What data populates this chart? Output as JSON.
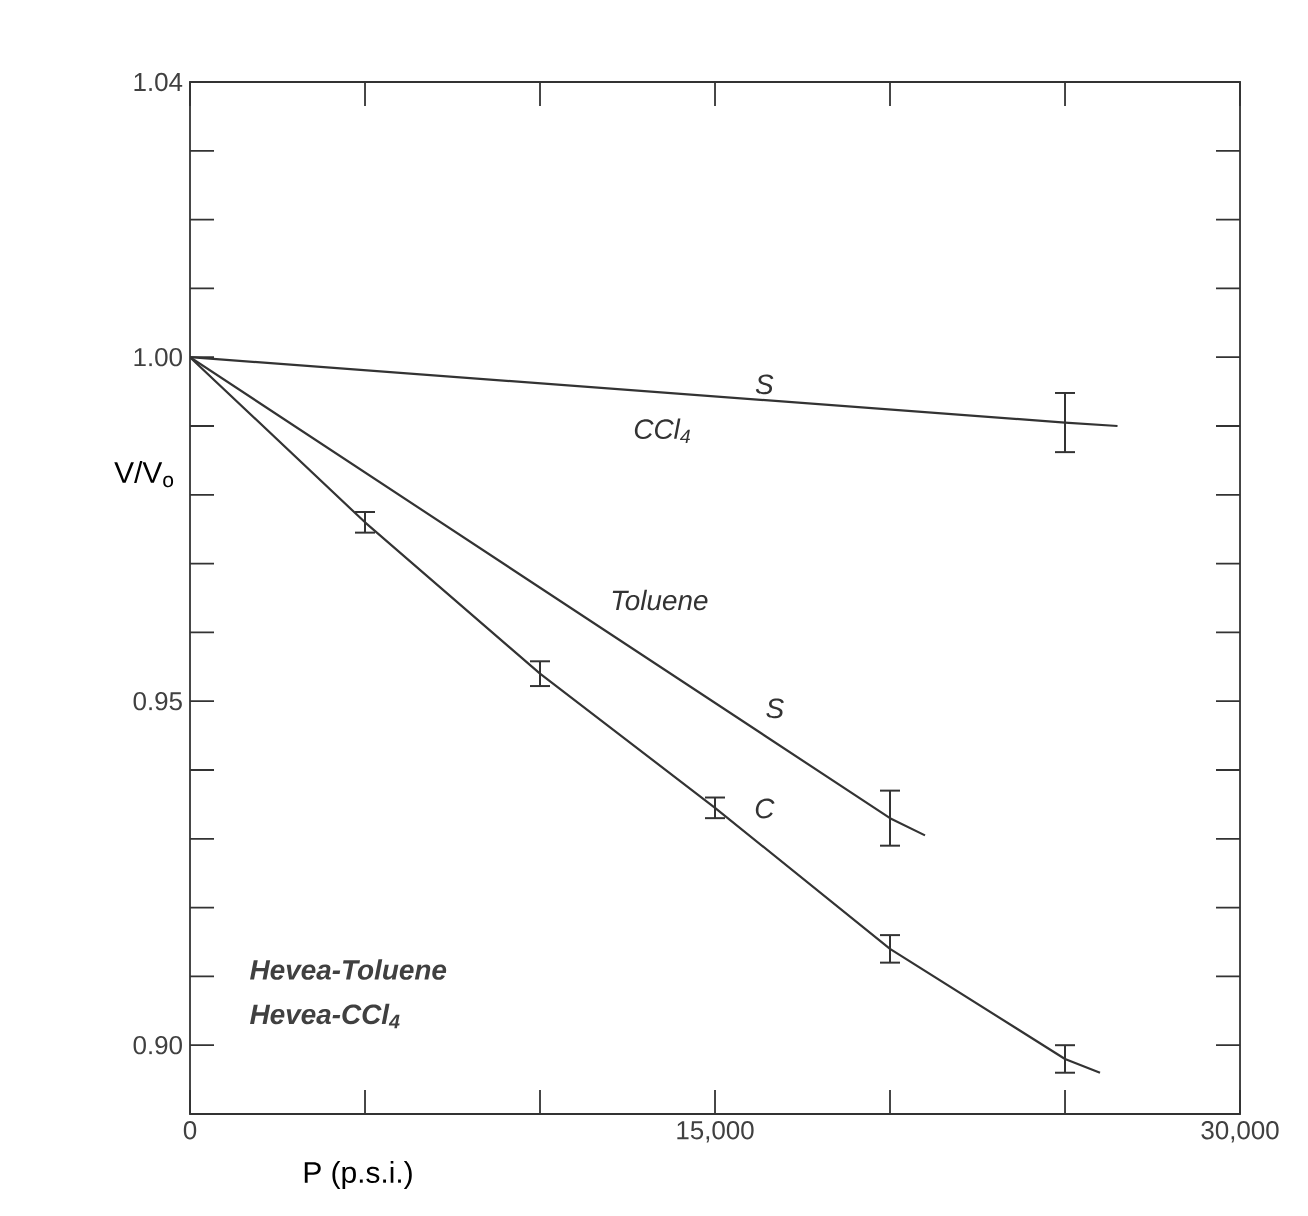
{
  "chart_data": {
    "type": "line",
    "xlabel": "P (p.s.i.)",
    "ylabel": "V/V$_{o}$",
    "xlim": [
      0,
      30000
    ],
    "ylim": [
      0.89,
      1.04
    ],
    "xticks": [
      0,
      {
        "value": 5000,
        "label": null
      },
      {
        "value": 10000,
        "label": null
      },
      {
        "value": 15000,
        "label": "15,000"
      },
      {
        "value": 20000,
        "label": null
      },
      {
        "value": 25000,
        "label": null
      },
      {
        "value": 30000,
        "label": "30,000"
      }
    ],
    "yticks": [
      {
        "value": 0.9,
        "label": "0.90"
      },
      {
        "value": 0.91,
        "label": null
      },
      {
        "value": 0.92,
        "label": null
      },
      {
        "value": 0.93,
        "label": null
      },
      {
        "value": 0.94,
        "label": null
      },
      0.95,
      {
        "value": 0.96,
        "label": null
      },
      {
        "value": 0.97,
        "label": null
      },
      {
        "value": 0.98,
        "label": null
      },
      {
        "value": 0.99,
        "label": null
      },
      {
        "value": 1.0,
        "label": "1.00"
      },
      {
        "value": 1.01,
        "label": null
      },
      {
        "value": 1.02,
        "label": null
      },
      {
        "value": 1.03,
        "label": null
      },
      1.04
    ],
    "marker": "none",
    "line_style": "solid",
    "grid": false,
    "series": [
      {
        "color": "#333333",
        "x": [
          0,
          25000,
          26500
        ],
        "values": [
          1.0,
          0.9905,
          0.99
        ],
        "errors": [
          null,
          0.0043,
          null
        ]
      },
      {
        "color": "#333333",
        "x": [
          0,
          20000,
          21000
        ],
        "values": [
          1.0,
          0.933,
          0.9305
        ],
        "errors": [
          null,
          0.004,
          null
        ]
      },
      {
        "color": "#333333",
        "x": [
          0,
          5000,
          10000,
          15000,
          20000,
          25000,
          26000
        ],
        "values": [
          1.0,
          0.976,
          0.954,
          0.9345,
          0.914,
          0.898,
          0.896
        ],
        "errors": [
          null,
          0.0015,
          0.0018,
          0.0015,
          0.002,
          0.002,
          null
        ]
      }
    ],
    "annotations": [
      "S",
      "CCl$_{4}$",
      "Toluene",
      "S",
      "C",
      "Hevea-Toluene",
      "Hevea-CCl$_{4}$"
    ]
  }
}
